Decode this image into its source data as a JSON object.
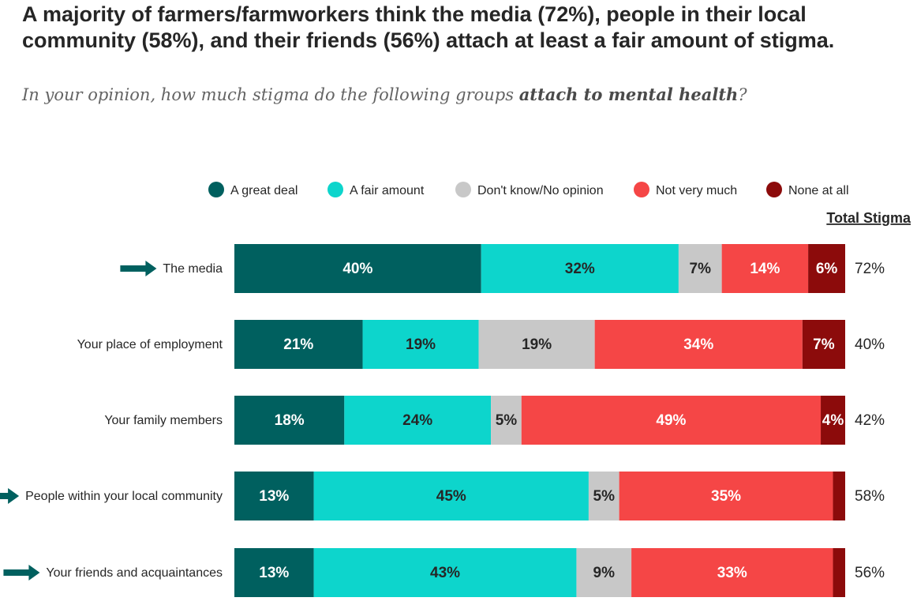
{
  "title": "A majority of farmers/farmworkers think the media (72%), people in their local community (58%), and their friends (56%) attach at least a fair amount of stigma.",
  "subtitle": {
    "prefix": "In your opinion, how much stigma do the following groups ",
    "emphasis": "attach to mental health",
    "suffix": "?"
  },
  "chart_data": {
    "type": "bar",
    "orientation": "horizontal",
    "stacked": true,
    "percent_stacked": true,
    "total_label": "Total Stigma",
    "legend_position": "top",
    "grid": false,
    "categories": [
      "The media",
      "Your place of employment",
      "Your family members",
      "People within your local community",
      "Your friends and acquaintances"
    ],
    "highlighted_categories": [
      true,
      false,
      false,
      true,
      true
    ],
    "series": [
      {
        "name": "A great deal",
        "color": "#00605f",
        "label_color": "#ffffff",
        "values": [
          40,
          21,
          18,
          13,
          13
        ]
      },
      {
        "name": "A fair amount",
        "color": "#0dd5cc",
        "label_color": "#262626",
        "values": [
          32,
          19,
          24,
          45,
          43
        ]
      },
      {
        "name": "Don't know/No opinion",
        "color": "#c8c8c8",
        "label_color": "#262626",
        "values": [
          7,
          19,
          5,
          5,
          9
        ]
      },
      {
        "name": "Not very much",
        "color": "#f54646",
        "label_color": "#ffffff",
        "values": [
          14,
          34,
          49,
          35,
          33
        ]
      },
      {
        "name": "None at all",
        "color": "#8c0b0b",
        "label_color": "#ffffff",
        "values": [
          6,
          7,
          4,
          2,
          2
        ],
        "hide_labels": [
          false,
          false,
          false,
          true,
          true
        ]
      }
    ],
    "total_stigma": [
      "72%",
      "40%",
      "42%",
      "58%",
      "56%"
    ],
    "arrow_color": "#00605f"
  }
}
